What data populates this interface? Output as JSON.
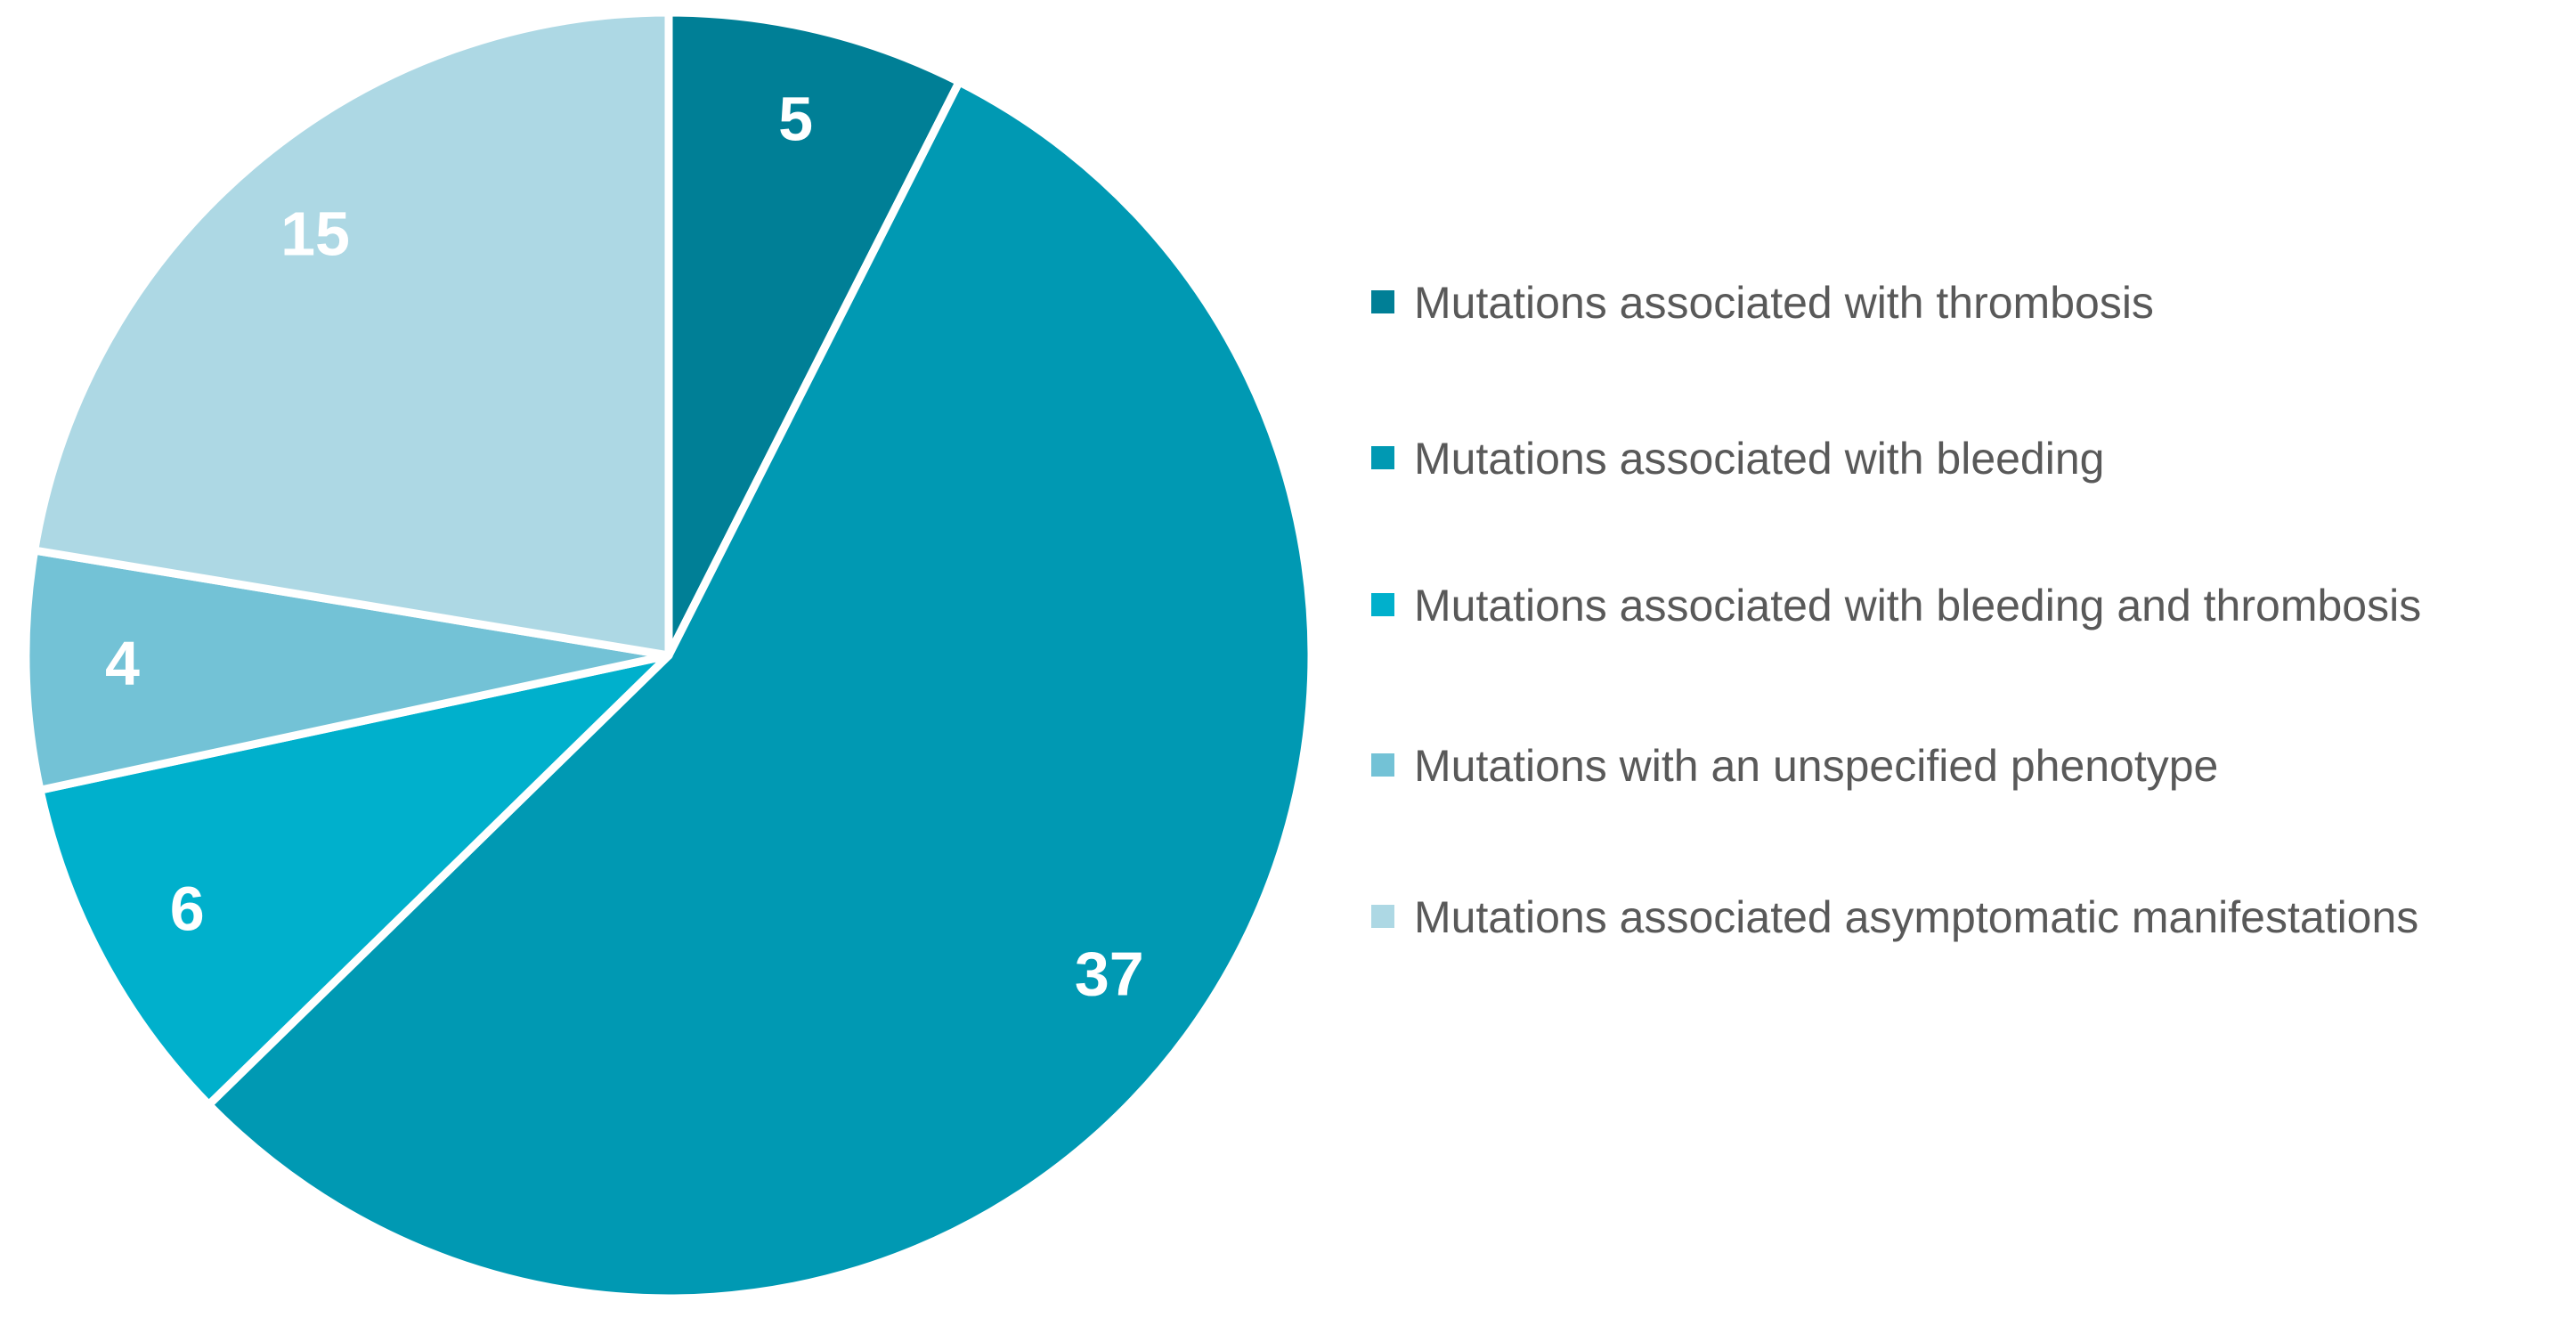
{
  "chart_data": {
    "type": "pie",
    "categories": [
      "Mutations associated with thrombosis",
      "Mutations associated with bleeding",
      "Mutations associated with bleeding and thrombosis",
      "Mutations with an unspecified phenotype",
      "Mutations associated asymptomatic manifestations"
    ],
    "values": [
      5,
      37,
      6,
      4,
      15
    ],
    "colors": [
      "#007f96",
      "#0099b3",
      "#00b0cc",
      "#73c2d6",
      "#add8e4"
    ],
    "legend": "right"
  }
}
